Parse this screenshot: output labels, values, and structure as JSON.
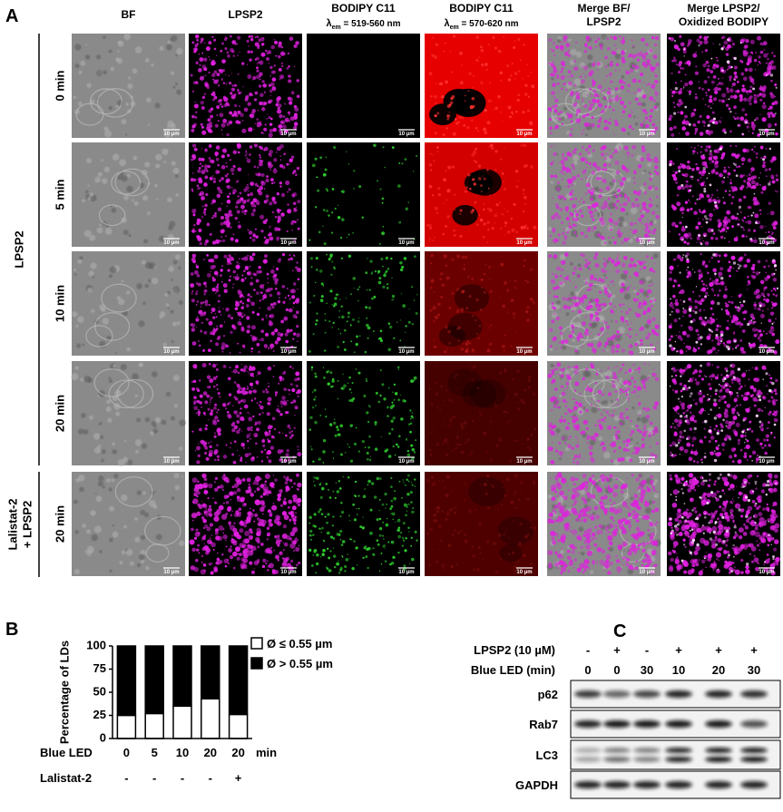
{
  "panel_labels": [
    "A",
    "B",
    "C"
  ],
  "panel_a": {
    "columns": [
      {
        "lines": [
          "BF"
        ]
      },
      {
        "lines": [
          "LPSP2"
        ]
      },
      {
        "lines": [
          "BODIPY C11"
        ],
        "symbol": "λ",
        "sub": "em",
        "range": " = 519-560 nm"
      },
      {
        "lines": [
          "BODIPY C11"
        ],
        "symbol": "λ",
        "sub": "em",
        "range": " = 570-620 nm"
      },
      {
        "lines": [
          "Merge BF/",
          "LPSP2"
        ]
      },
      {
        "lines": [
          "Merge LPSP2/",
          "Oxidized BODIPY"
        ]
      }
    ],
    "rows": [
      "0 min",
      "5 min",
      "10 min",
      "20 min",
      "20 min"
    ],
    "groups": [
      {
        "lines": [
          "LPSP2"
        ]
      },
      {
        "lines": [
          "Lalistat-2",
          "+ LPSP2"
        ]
      }
    ],
    "scale_bar": "10 µm"
  },
  "chart_data": {
    "type": "bar",
    "stacked": true,
    "ylabel": "Percentage of LDs",
    "xlabel": "Blue LED",
    "xunit": "min",
    "categories": [
      "0",
      "5",
      "10",
      "20",
      "20"
    ],
    "treatment": {
      "name": "Lalistat-2",
      "values": [
        "-",
        "-",
        "-",
        "-",
        "+"
      ]
    },
    "series": [
      {
        "name": "Ø ≤ 0.55 µm",
        "color": "#ffffff",
        "values": [
          25,
          27,
          35,
          43,
          26
        ]
      },
      {
        "name": "Ø > 0.55 µm",
        "color": "#000000",
        "values": [
          75,
          73,
          65,
          57,
          74
        ]
      }
    ],
    "ylim": [
      0,
      100
    ],
    "yticks": [
      0,
      25,
      50,
      75,
      100
    ],
    "legend": "right"
  },
  "panel_c": {
    "conditions": [
      {
        "name": "LPSP2 (10 µM)",
        "values": [
          "-",
          "+",
          "-",
          "+",
          "+",
          "+"
        ]
      },
      {
        "name": "Blue LED (min)",
        "values": [
          "0",
          "0",
          "30",
          "10",
          "20",
          "30"
        ]
      }
    ],
    "blots": [
      "p62",
      "Rab7",
      "LC3",
      "GAPDH"
    ]
  }
}
